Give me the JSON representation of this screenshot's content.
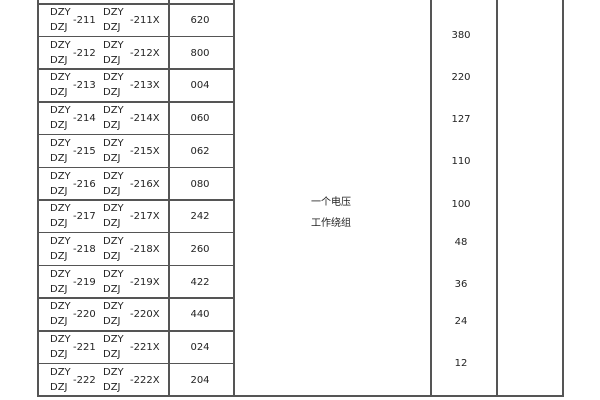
{
  "rows": [
    {
      "prefix_top": "DZY",
      "prefix_bottom": "DZJ",
      "model": "-211",
      "prefix2_top": "DZY",
      "prefix2_bottom": "DZJ",
      "model_x": "-211X",
      "code": "620"
    },
    {
      "prefix_top": "DZY",
      "prefix_bottom": "DZJ",
      "model": "-212",
      "prefix2_top": "DZY",
      "prefix2_bottom": "DZJ",
      "model_x": "-212X",
      "code": "800"
    },
    {
      "prefix_top": "DZY",
      "prefix_bottom": "DZJ",
      "model": "-213",
      "prefix2_top": "DZY",
      "prefix2_bottom": "DZJ",
      "model_x": "-213X",
      "code": "004"
    },
    {
      "prefix_top": "DZY",
      "prefix_bottom": "DZJ",
      "model": "-214",
      "prefix2_top": "DZY",
      "prefix2_bottom": "DZJ",
      "model_x": "-214X",
      "code": "060"
    },
    {
      "prefix_top": "DZY",
      "prefix_bottom": "DZJ",
      "model": "-215",
      "prefix2_top": "DZY",
      "prefix2_bottom": "DZJ",
      "model_x": "-215X",
      "code": "062"
    },
    {
      "prefix_top": "DZY",
      "prefix_bottom": "DZJ",
      "model": "-216",
      "prefix2_top": "DZY",
      "prefix2_bottom": "DZJ",
      "model_x": "-216X",
      "code": "080"
    },
    {
      "prefix_top": "DZY",
      "prefix_bottom": "DZJ",
      "model": "-217",
      "prefix2_top": "DZY",
      "prefix2_bottom": "DZJ",
      "model_x": "-217X",
      "code": "242"
    },
    {
      "prefix_top": "DZY",
      "prefix_bottom": "DZJ",
      "model": "-218",
      "prefix2_top": "DZY",
      "prefix2_bottom": "DZJ",
      "model_x": "-218X",
      "code": "260"
    },
    {
      "prefix_top": "DZY",
      "prefix_bottom": "DZJ",
      "model": "-219",
      "prefix2_top": "DZY",
      "prefix2_bottom": "DZJ",
      "model_x": "-219X",
      "code": "422"
    },
    {
      "prefix_top": "DZY",
      "prefix_bottom": "DZJ",
      "model": "-220",
      "prefix2_top": "DZY",
      "prefix2_bottom": "DZJ",
      "model_x": "-220X",
      "code": "440"
    },
    {
      "prefix_top": "DZY",
      "prefix_bottom": "DZJ",
      "model": "-221",
      "prefix2_top": "DZY",
      "prefix2_bottom": "DZJ",
      "model_x": "-221X",
      "code": "024"
    },
    {
      "prefix_top": "DZY",
      "prefix_bottom": "DZJ",
      "model": "-222",
      "prefix2_top": "DZY",
      "prefix2_bottom": "DZJ",
      "model_x": "-222X",
      "code": "204"
    }
  ],
  "winding": {
    "line1": "一个电压",
    "line2": "工作绕组"
  },
  "voltages": [
    "380",
    "220",
    "127",
    "110",
    "100",
    "48",
    "36",
    "24",
    "12"
  ]
}
